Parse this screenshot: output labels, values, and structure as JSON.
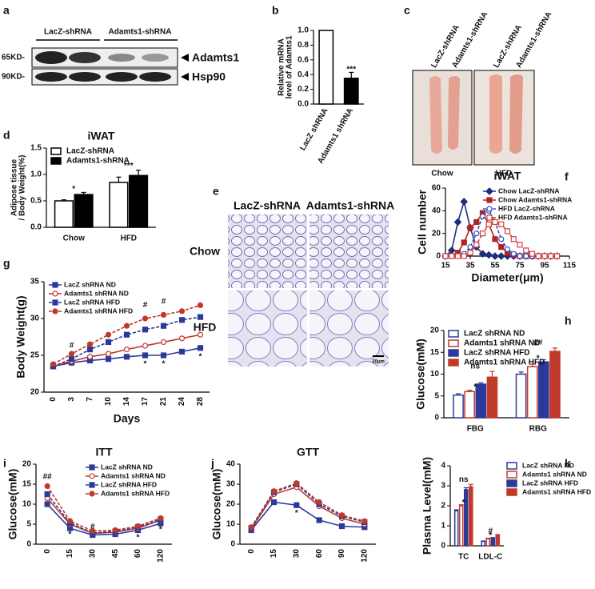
{
  "panel_a": {
    "label": "a",
    "groups": [
      "LacZ-shRNA",
      "Adamts1-shRNA"
    ],
    "markers": [
      "65KD-",
      "90KD-"
    ],
    "proteins": [
      "Adamts1",
      "Hsp90"
    ]
  },
  "panel_c": {
    "label": "c",
    "columns": [
      "LacZ-shRNA",
      "Adamts1-shRNA",
      "LacZ-shRNA",
      "Adamts1-shRNA"
    ],
    "conditions": [
      "Chow",
      "HFD"
    ]
  },
  "panel_e": {
    "label": "e",
    "columns": [
      "LacZ-shRNA",
      "Adamts1-shRNA"
    ],
    "rows": [
      "Chow",
      "HFD"
    ],
    "scale_bar": "20μm"
  },
  "chart_data": [
    {
      "panel": "b",
      "type": "bar",
      "ylabel": [
        "Relative mRNA",
        "level of Adamts1"
      ],
      "categories": [
        "LacZ shRNA",
        "Adamts1 shRNA"
      ],
      "values": [
        1.0,
        0.35
      ],
      "errors": [
        null,
        0.08
      ],
      "colors": [
        "#ffffff",
        "#000000"
      ],
      "edgecolor": "#000000",
      "xtick_rotation": -60,
      "ylim": [
        0,
        1
      ],
      "yticks": [
        {
          "value": 0,
          "label": "0.0"
        },
        0.2,
        0.4,
        0.6,
        0.8,
        {
          "value": 1,
          "label": "1.0"
        }
      ],
      "annotations": [
        {
          "text": "***",
          "x": "Adamts1 shRNA",
          "y": 0.47
        }
      ]
    },
    {
      "panel": "d",
      "type": "bar",
      "title": "iWAT",
      "ylabel": [
        "Adipose tissue",
        "/ Body Weight(%)"
      ],
      "categories": [
        "Chow",
        "HFD"
      ],
      "series": [
        {
          "name": "LacZ-shRNA",
          "color": "#ffffff",
          "edgecolor": "#000000",
          "values": [
            0.5,
            0.85
          ],
          "errors": [
            0.02,
            0.1
          ]
        },
        {
          "name": "Adamts1-shRNA",
          "color": "#000000",
          "edgecolor": "#000000",
          "values": [
            0.62,
            0.98
          ],
          "errors": [
            0.04,
            0.1
          ]
        }
      ],
      "legend": "upper left",
      "ylim": [
        0,
        1.5
      ],
      "yticks": [
        {
          "value": 0,
          "label": "0.0"
        },
        0.5,
        {
          "value": 1,
          "label": "1.0"
        },
        1.5
      ],
      "annotations": [
        {
          "text": "*",
          "x": "Chow",
          "y": 0.72
        },
        {
          "text": "***",
          "x": "HFD",
          "y": 1.16
        }
      ]
    },
    {
      "panel": "f",
      "type": "line",
      "title": "iWAT",
      "xlabel": "Diameter(μm)",
      "ylabel": "Cell number",
      "x": [
        15,
        20,
        25,
        30,
        35,
        40,
        45,
        50,
        55,
        60,
        65,
        70,
        75,
        80,
        85,
        90,
        95,
        100,
        105
      ],
      "series": [
        {
          "name": "Chow LacZ-shRNA",
          "color": "#1f2e7a",
          "dash": false,
          "marker": "diamond",
          "marker_fill": true,
          "values": [
            0,
            5,
            30,
            48,
            25,
            8,
            2,
            1,
            0,
            0,
            0,
            0,
            0,
            0,
            0,
            0,
            0,
            0,
            0
          ]
        },
        {
          "name": "Chow Adamts1-shRNA",
          "color": "#b22222",
          "dash": false,
          "marker": "square",
          "marker_fill": true,
          "values": [
            0,
            0,
            3,
            12,
            25,
            30,
            38,
            28,
            15,
            8,
            3,
            1,
            0,
            0,
            0,
            0,
            0,
            0,
            0
          ]
        },
        {
          "name": "HFD LacZ-shRNA",
          "color": "#3050c8",
          "dash": true,
          "marker": "circle",
          "marker_fill": false,
          "values": [
            0,
            0,
            0,
            2,
            8,
            20,
            35,
            40,
            30,
            15,
            6,
            2,
            0,
            0,
            0,
            0,
            0,
            0,
            0
          ]
        },
        {
          "name": "HFD Adamts1-shRNA",
          "color": "#d04040",
          "dash": true,
          "marker": "square",
          "marker_fill": false,
          "values": [
            0,
            0,
            0,
            0,
            3,
            10,
            20,
            28,
            30,
            28,
            22,
            15,
            10,
            5,
            2,
            0,
            0,
            0,
            0
          ]
        }
      ],
      "legend": "upper right",
      "xlim": [
        15,
        115
      ],
      "xticks": [
        15,
        35,
        55,
        75,
        95,
        115
      ],
      "ylim": [
        0,
        60
      ],
      "yticks": [
        0,
        20,
        40,
        60
      ]
    },
    {
      "panel": "g",
      "type": "line",
      "xlabel": "Days",
      "ylabel": "Body Weight(g)",
      "categories": [
        0,
        3,
        7,
        10,
        14,
        17,
        21,
        24,
        28
      ],
      "xtick_rotation": -90,
      "series": [
        {
          "name": "LacZ shRNA ND",
          "color": "#2b3a9a",
          "dash": false,
          "marker": "square",
          "marker_fill": true,
          "values": [
            23.5,
            24,
            24.3,
            24.5,
            24.8,
            25,
            25,
            25.5,
            26
          ]
        },
        {
          "name": "Adamts1 shRNA ND",
          "color": "#c0392b",
          "dash": false,
          "marker": "circle",
          "marker_fill": false,
          "values": [
            23.5,
            24.2,
            24.8,
            25.2,
            25.8,
            26.3,
            26.8,
            27.3,
            27.8
          ]
        },
        {
          "name": "LacZ shRNA HFD",
          "color": "#2b3a9a",
          "dash": true,
          "marker": "square",
          "marker_fill": true,
          "values": [
            23.5,
            24.5,
            25.8,
            26.8,
            27.8,
            28.5,
            29,
            29.8,
            30.2
          ]
        },
        {
          "name": "Adamts1 shRNA HFD",
          "color": "#c0392b",
          "dash": true,
          "marker": "circle",
          "marker_fill": true,
          "values": [
            23.8,
            25.2,
            26.5,
            27.8,
            29,
            30,
            30.5,
            31,
            31.8
          ]
        }
      ],
      "legend": "upper left",
      "ylim": [
        20,
        35
      ],
      "yticks": [
        20,
        25,
        30,
        35
      ],
      "annotations": [
        {
          "text": "#",
          "x": 3,
          "y": 26.3
        },
        {
          "text": "#",
          "x": 17,
          "y": 31.8
        },
        {
          "text": "#",
          "x": 21,
          "y": 32.3
        },
        {
          "text": "*",
          "x": 17,
          "y": 23.8
        },
        {
          "text": "*",
          "x": 21,
          "y": 23.8
        },
        {
          "text": "*",
          "x": 28,
          "y": 24.8
        }
      ]
    },
    {
      "panel": "h",
      "type": "bar",
      "ylabel": "Glucose(mM)",
      "categories": [
        "FBG",
        "RBG"
      ],
      "series": [
        {
          "name": "LacZ shRNA ND",
          "color": "#ffffff",
          "edgecolor": "#2b3a9a",
          "values": [
            5.2,
            10.0
          ],
          "errors": [
            0.3,
            0.5
          ]
        },
        {
          "name": "Adamts1 shRNA ND",
          "color": "#ffffff",
          "edgecolor": "#c0392b",
          "values": [
            6.0,
            11.7
          ],
          "errors": [
            0.3,
            0.6
          ]
        },
        {
          "name": "LacZ shRNA HFD",
          "color": "#2b3a9a",
          "edgecolor": "#2b3a9a",
          "values": [
            7.7,
            12.8
          ],
          "errors": [
            0.3,
            0.5
          ]
        },
        {
          "name": "Adamts1 shRNA HFD",
          "color": "#c0392b",
          "edgecolor": "#c0392b",
          "values": [
            9.3,
            15.2
          ],
          "errors": [
            1.3,
            0.8
          ]
        }
      ],
      "legend": "upper left",
      "ylim": [
        0,
        20
      ],
      "yticks": [
        0,
        5,
        10,
        15,
        20
      ],
      "annotations": [
        {
          "text": "*",
          "x": "FBG",
          "y": 7
        },
        {
          "text": "ns",
          "x": "FBG",
          "y": 11.8
        },
        {
          "text": "*",
          "x": "RBG",
          "y": 13.6
        },
        {
          "text": "##",
          "x": "RBG",
          "y": 17.2
        }
      ]
    },
    {
      "panel": "i",
      "type": "line",
      "title": "ITT",
      "ylabel": "Glucose(mM)",
      "categories": [
        0,
        15,
        30,
        45,
        60,
        120
      ],
      "xtick_rotation": -90,
      "series": [
        {
          "name": "LacZ shRNA ND",
          "color": "#2b3a9a",
          "dash": false,
          "marker": "square",
          "marker_fill": true,
          "values": [
            10,
            4,
            2.3,
            2.5,
            3.5,
            5.2
          ]
        },
        {
          "name": "Adamts1 shRNA ND",
          "color": "#c0392b",
          "dash": false,
          "marker": "circle",
          "marker_fill": false,
          "values": [
            11.5,
            5,
            2.7,
            3,
            4,
            6
          ]
        },
        {
          "name": "LacZ shRNA HFD",
          "color": "#2b3a9a",
          "dash": true,
          "marker": "square",
          "marker_fill": true,
          "values": [
            12.5,
            5.3,
            2.8,
            3.2,
            4.3,
            6.2
          ]
        },
        {
          "name": "Adamts1 shRNA HFD",
          "color": "#c0392b",
          "dash": true,
          "marker": "circle",
          "marker_fill": true,
          "values": [
            14.5,
            5.8,
            3.3,
            3.5,
            4.5,
            6.5
          ]
        }
      ],
      "legend": "upper right",
      "ylim": [
        0,
        20
      ],
      "yticks": [
        0,
        5,
        10,
        15,
        20
      ],
      "annotations": [
        {
          "text": "##",
          "x": 0,
          "y": 16.8
        },
        {
          "text": "*",
          "x": 15,
          "y": 2.4
        },
        {
          "text": "#",
          "x": 30,
          "y": 4.3
        },
        {
          "text": "*",
          "x": 60,
          "y": 1.6
        },
        {
          "text": "*",
          "x": 120,
          "y": 3.6
        }
      ]
    },
    {
      "panel": "j",
      "type": "line",
      "title": "GTT",
      "ylabel": "Glucose(mM)",
      "categories": [
        0,
        15,
        30,
        60,
        90,
        120
      ],
      "xtick_rotation": -90,
      "series": [
        {
          "name": "LacZ shRNA ND",
          "color": "#2b3a9a",
          "dash": false,
          "marker": "square",
          "marker_fill": true,
          "values": [
            7,
            21,
            19.5,
            12,
            9,
            8.5
          ]
        },
        {
          "name": "Adamts1 shRNA ND",
          "color": "#c0392b",
          "dash": false,
          "marker": "circle",
          "marker_fill": false,
          "values": [
            7.5,
            25,
            28.5,
            19,
            13,
            10
          ]
        },
        {
          "name": "LacZ shRNA HFD",
          "color": "#2b3a9a",
          "dash": true,
          "marker": "square",
          "marker_fill": true,
          "values": [
            8,
            26,
            30,
            20,
            14,
            11
          ]
        },
        {
          "name": "Adamts1 shRNA HFD",
          "color": "#c0392b",
          "dash": true,
          "marker": "circle",
          "marker_fill": true,
          "values": [
            8.5,
            26.5,
            30.5,
            21,
            14.5,
            11.5
          ]
        }
      ],
      "ylim": [
        0,
        40
      ],
      "yticks": [
        0,
        10,
        20,
        30,
        40
      ],
      "annotations": [
        {
          "text": "*",
          "x": 30,
          "y": 15.5
        }
      ]
    },
    {
      "panel": "k",
      "type": "bar",
      "ylabel": "Plasma Level(mM)",
      "categories": [
        "TC",
        "LDL-C"
      ],
      "series": [
        {
          "name": "LacZ shRNA ND",
          "color": "#ffffff",
          "edgecolor": "#2b3a9a",
          "values": [
            1.75,
            0.22
          ],
          "errors": [
            0.05,
            0.02
          ]
        },
        {
          "name": "Adamts1 shRNA ND",
          "color": "#ffffff",
          "edgecolor": "#c0392b",
          "values": [
            2.0,
            0.35
          ],
          "errors": [
            0.05,
            0.03
          ]
        },
        {
          "name": "LacZ shRNA HFD",
          "color": "#2b3a9a",
          "edgecolor": "#2b3a9a",
          "values": [
            2.8,
            0.38
          ],
          "errors": [
            0.1,
            0.03
          ]
        },
        {
          "name": "Adamts1 shRNA HFD",
          "color": "#c0392b",
          "edgecolor": "#c0392b",
          "values": [
            2.95,
            0.52
          ],
          "errors": [
            0.12,
            0.04
          ]
        }
      ],
      "legend": "right",
      "ylim": [
        0,
        4
      ],
      "yticks": [
        0,
        1,
        2,
        3,
        4
      ],
      "annotations": [
        {
          "text": "*",
          "x": "TC",
          "y": 2.15
        },
        {
          "text": "ns",
          "x": "TC",
          "y": 3.3
        },
        {
          "text": "*",
          "x": "LDL-C",
          "y": 0.5
        },
        {
          "text": "#",
          "x": "LDL-C",
          "y": 0.72
        }
      ]
    }
  ]
}
